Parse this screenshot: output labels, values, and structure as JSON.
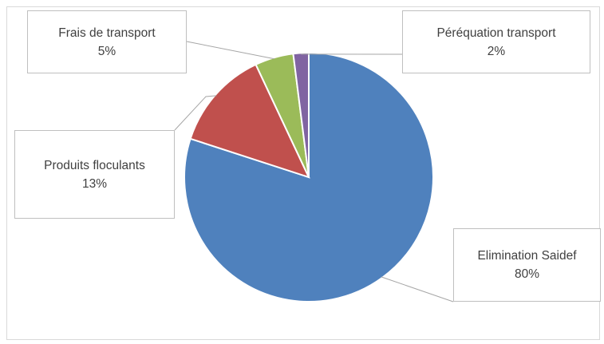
{
  "chart_data": {
    "type": "pie",
    "slices": [
      {
        "label": "Elimination Saidef",
        "percent_label": "80%",
        "value": 80,
        "color": "#4f81bd"
      },
      {
        "label": "Produits floculants",
        "percent_label": "13%",
        "value": 13,
        "color": "#c0504d"
      },
      {
        "label": "Frais de transport",
        "percent_label": "5%",
        "value": 5,
        "color": "#9bbb59"
      },
      {
        "label": "Péréquation transport",
        "percent_label": "2%",
        "value": 2,
        "color": "#8064a2"
      }
    ],
    "start": "12 o'clock",
    "direction": "clockwise",
    "legend": "none",
    "data_labels": "callouts with category name and percentage"
  }
}
